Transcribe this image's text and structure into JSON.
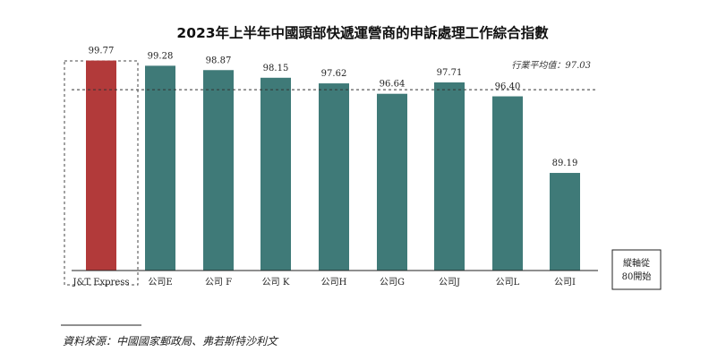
{
  "chart_data": {
    "type": "bar",
    "title": "2023年上半年中國頭部快遞運營商的申訴處理工作綜合指數",
    "categories": [
      "J&T Express",
      "公司E",
      "公司 F",
      "公司 K",
      "公司H",
      "公司G",
      "公司J",
      "公司L",
      "公司I"
    ],
    "values": [
      99.77,
      99.28,
      98.87,
      98.15,
      97.62,
      96.64,
      97.71,
      96.4,
      89.19
    ],
    "value_labels": [
      "99.77",
      "99.28",
      "98.87",
      "98.15",
      "97.62",
      "96.64",
      "97.71",
      "96.40",
      "89.19"
    ],
    "ylim": [
      80,
      101
    ],
    "average": {
      "value": 97.03,
      "label": "行業平均值：97.03"
    },
    "axis_note": [
      "縱軸從",
      "80開始"
    ],
    "source": "資料來源：中國國家郵政局、弗若斯特沙利文",
    "colors": {
      "highlight": "#b23a3a",
      "bar": "#3f7a78",
      "text": "#222222"
    },
    "highlight_index": 0,
    "grid": false
  }
}
